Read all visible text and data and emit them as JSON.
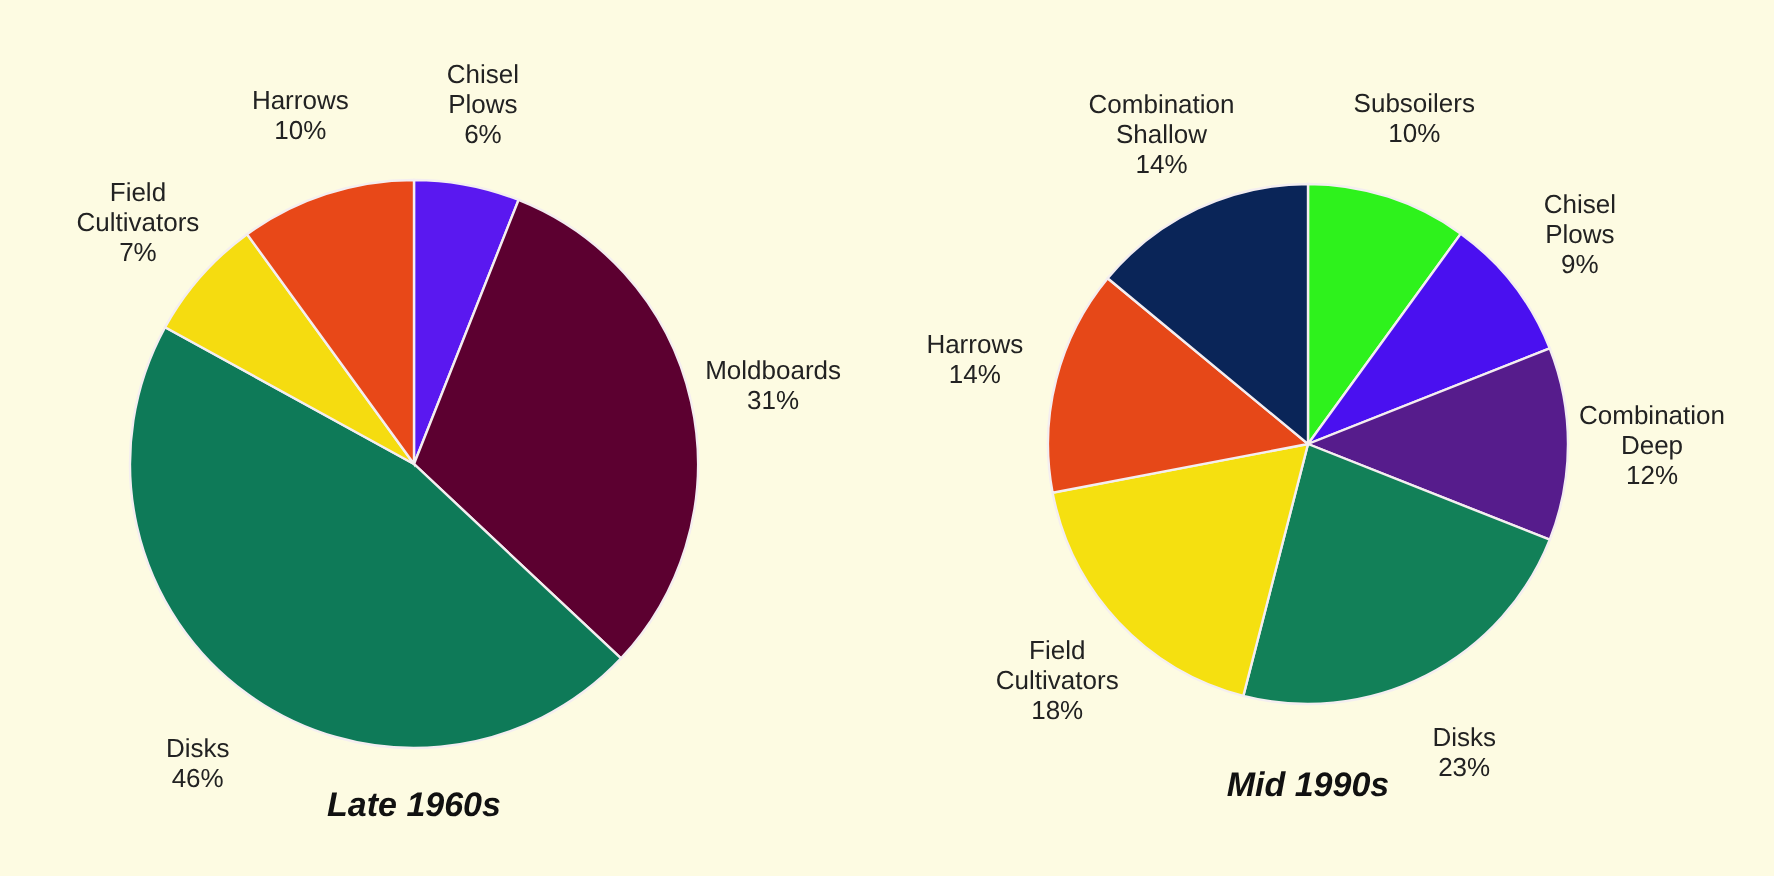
{
  "chart_data": [
    {
      "type": "pie",
      "title": "Late 1960s",
      "categories": [
        "Chisel Plows",
        "Moldboards",
        "Disks",
        "Field Cultivators",
        "Harrows"
      ],
      "values": [
        6,
        31,
        46,
        7,
        10
      ],
      "value_labels": [
        "6%",
        "31%",
        "46%",
        "7%",
        "10%"
      ],
      "colors": [
        "#5a18f0",
        "#5c0030",
        "#0e7a58",
        "#f5dc10",
        "#e84818"
      ]
    },
    {
      "type": "pie",
      "title": "Mid 1990s",
      "categories": [
        "Subsoilers",
        "Chisel Plows",
        "Combination Deep",
        "Disks",
        "Field Cultivators",
        "Harrows",
        "Combination Shallow"
      ],
      "values": [
        10,
        9,
        12,
        23,
        18,
        14,
        14
      ],
      "value_labels": [
        "10%",
        "9%",
        "12%",
        "23%",
        "18%",
        "14%",
        "14%"
      ],
      "colors": [
        "#2ef21c",
        "#4a10f0",
        "#561c8c",
        "#128058",
        "#f5e010",
        "#e64818",
        "#0a2558"
      ]
    }
  ]
}
